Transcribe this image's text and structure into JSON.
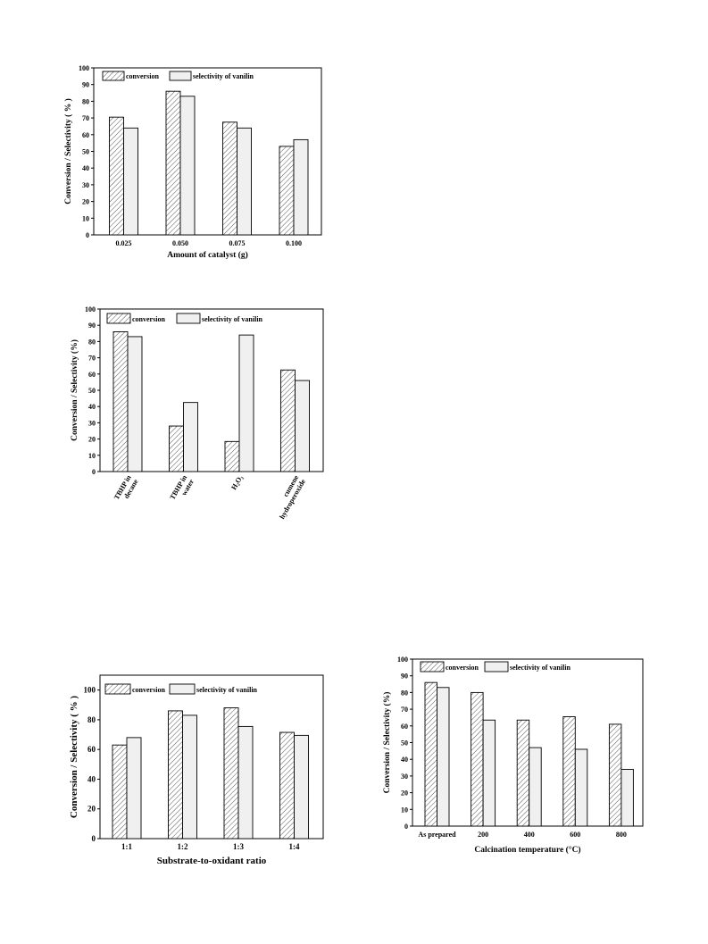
{
  "colors": {
    "axis": "#000000",
    "conversion_fill": "hatched-diagonal",
    "selectivity_fill": "#f0f0f0"
  },
  "chart_data": [
    {
      "type": "bar",
      "xlabel": "Amount of catalyst (g)",
      "ylabel": "Conversion / Selectivity ( % )",
      "ylim": [
        0,
        100
      ],
      "yticks": [
        0,
        10,
        20,
        30,
        40,
        50,
        60,
        70,
        80,
        90,
        100
      ],
      "categories": [
        "0.025",
        "0.050",
        "0.075",
        "0.100"
      ],
      "series": [
        {
          "name": "conversion",
          "values": [
            70.5,
            86,
            67.5,
            53
          ]
        },
        {
          "name": "selectivity of vanilin",
          "values": [
            64,
            83,
            64,
            57
          ]
        }
      ],
      "legend": "top"
    },
    {
      "type": "bar",
      "xlabel": "",
      "ylabel": "Conversion / Selectivity (%)",
      "ylim": [
        0,
        100
      ],
      "yticks": [
        0,
        10,
        20,
        30,
        40,
        50,
        60,
        70,
        80,
        90,
        100
      ],
      "categories": [
        [
          "TBHP in",
          "decane"
        ],
        [
          "TBHP in",
          "water"
        ],
        [
          "H₂O₂"
        ],
        [
          "cumene",
          "hydroperoxide"
        ]
      ],
      "series": [
        {
          "name": "conversion",
          "values": [
            86,
            28,
            18.5,
            62.5
          ]
        },
        {
          "name": "selectivity of vanilin",
          "values": [
            83,
            42.5,
            84,
            56
          ]
        }
      ],
      "legend": "top"
    },
    {
      "type": "bar",
      "xlabel": "Substrate-to-oxidant ratio",
      "ylabel": "Conversion / Selectivity ( % )",
      "ylim": [
        0,
        110
      ],
      "yticks": [
        0,
        20,
        40,
        60,
        80,
        100
      ],
      "categories": [
        "1:1",
        "1:2",
        "1:3",
        "1:4"
      ],
      "series": [
        {
          "name": "conversion",
          "values": [
            63,
            86,
            88,
            71.5
          ]
        },
        {
          "name": "selectivity of vanilin",
          "values": [
            68,
            83,
            75.5,
            69.5
          ]
        }
      ],
      "legend": "top"
    },
    {
      "type": "bar",
      "xlabel": "Calcination temperature (°C)",
      "ylabel": "Conversion / Selectivity (%)",
      "ylim": [
        0,
        100
      ],
      "yticks": [
        0,
        10,
        20,
        30,
        40,
        50,
        60,
        70,
        80,
        90,
        100
      ],
      "categories": [
        "As prepared",
        "200",
        "400",
        "600",
        "800"
      ],
      "series": [
        {
          "name": "conversion",
          "values": [
            86,
            80,
            63.5,
            65.5,
            61
          ]
        },
        {
          "name": "selectivity of vanilin",
          "values": [
            83,
            63.5,
            47,
            46,
            34
          ]
        }
      ],
      "legend": "top"
    }
  ]
}
